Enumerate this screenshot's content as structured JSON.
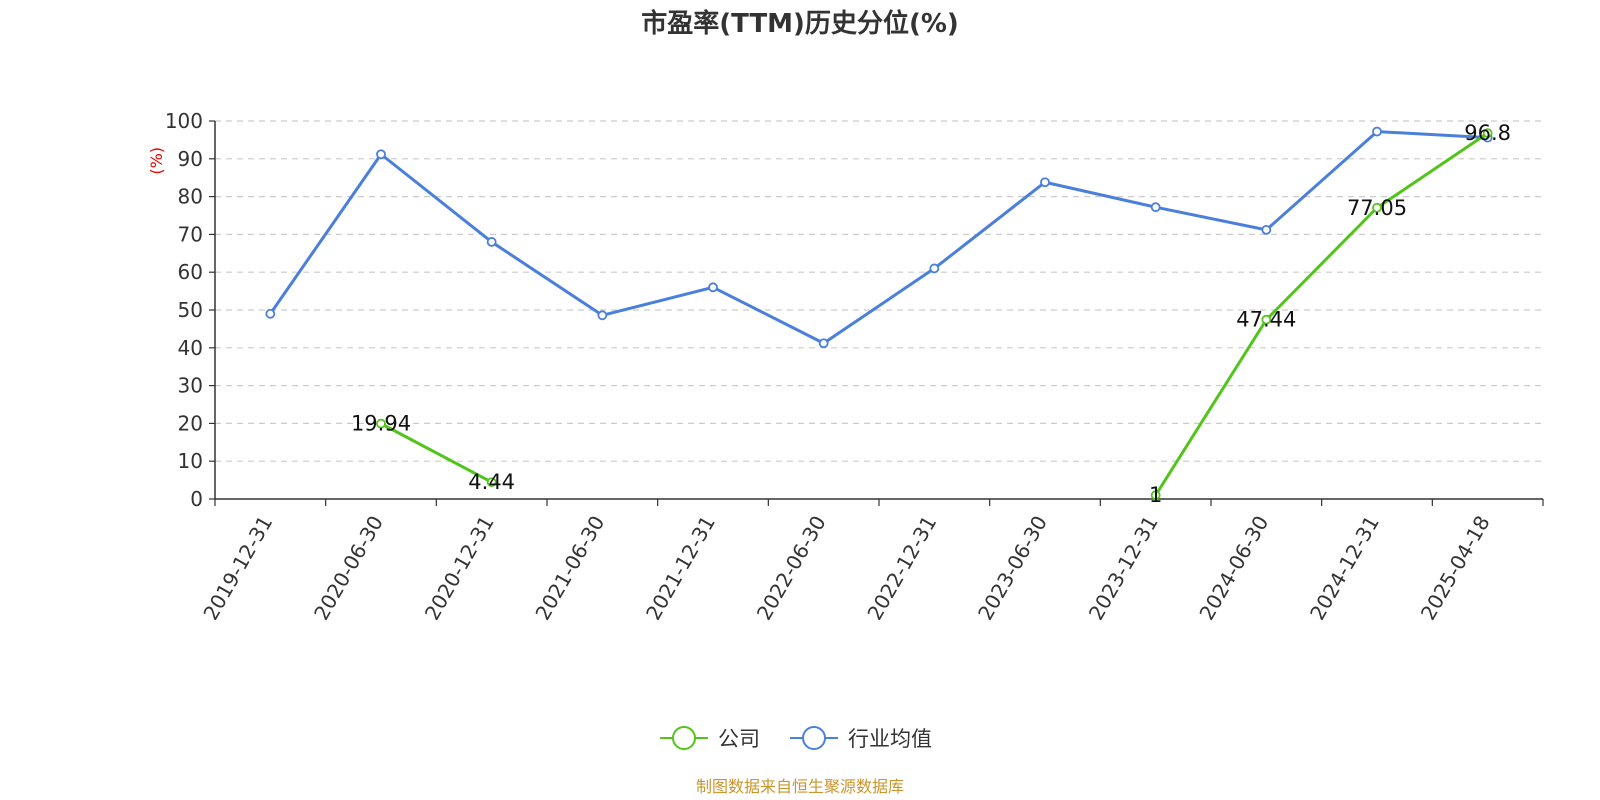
{
  "chart_data": {
    "type": "line",
    "title": "市盈率(TTM)历史分位(%)",
    "ylabel": "(%)",
    "xlabel": "",
    "ylim": [
      0,
      100
    ],
    "yticks": [
      0,
      10,
      20,
      30,
      40,
      50,
      60,
      70,
      80,
      90,
      100
    ],
    "x": [
      "2019-12-31",
      "2020-06-30",
      "2020-12-31",
      "2021-06-30",
      "2021-12-31",
      "2022-06-30",
      "2022-12-31",
      "2023-06-30",
      "2023-12-31",
      "2024-06-30",
      "2024-12-31",
      "2025-04-18"
    ],
    "grid": "horizontal-dashed",
    "legend_position": "bottom-center",
    "series": [
      {
        "name": "公司",
        "color": "#52c41a",
        "values": [
          null,
          19.94,
          4.44,
          null,
          null,
          null,
          null,
          null,
          1,
          47.44,
          77.05,
          96.8
        ],
        "labels": [
          null,
          "19.94",
          "4.44",
          null,
          null,
          null,
          null,
          null,
          "1",
          "47.44",
          "77.05",
          "96.8"
        ]
      },
      {
        "name": "行业均值",
        "color": "#4a7fdc",
        "values": [
          49,
          91.2,
          68,
          48.6,
          56,
          41.2,
          61,
          83.8,
          77.2,
          71.2,
          97.2,
          95.6
        ],
        "labels": []
      }
    ]
  },
  "source_text": "制图数据来自恒生聚源数据库"
}
